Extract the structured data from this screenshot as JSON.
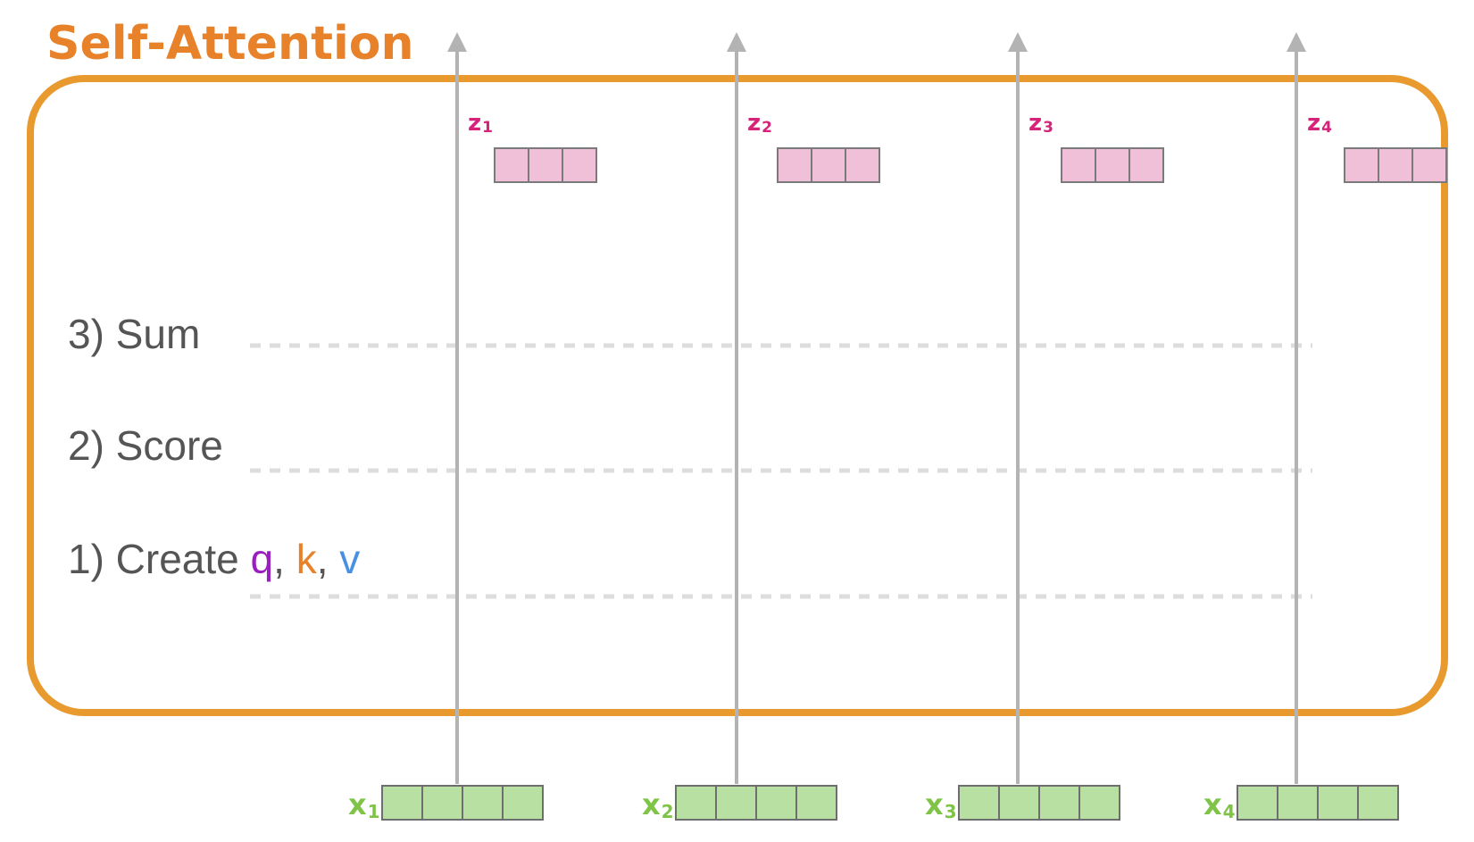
{
  "title": "Self-Attention",
  "steps": {
    "sum": "3) Sum",
    "score": "2) Score",
    "create_prefix": "1) Create ",
    "q": "q",
    "comma1": ", ",
    "k": "k",
    "comma2": ", ",
    "v": "v"
  },
  "inputs": [
    {
      "base": "x",
      "sub": "1"
    },
    {
      "base": "x",
      "sub": "2"
    },
    {
      "base": "x",
      "sub": "3"
    },
    {
      "base": "x",
      "sub": "4"
    }
  ],
  "outputs": [
    {
      "base": "z",
      "sub": "1"
    },
    {
      "base": "z",
      "sub": "2"
    },
    {
      "base": "z",
      "sub": "3"
    },
    {
      "base": "z",
      "sub": "4"
    }
  ],
  "input_vector_cells": 4,
  "output_vector_cells": 3,
  "colors": {
    "title": "#e8822a",
    "frame": "#e89a2e",
    "arrow": "#b3b3b3",
    "divider": "#dddddd",
    "input_fill": "#b7e0a2",
    "input_stroke": "#6e6e6e",
    "input_label": "#7fc447",
    "output_fill": "#f0c0d8",
    "output_stroke": "#7a7a7a",
    "output_label": "#d6237a",
    "q": "#9b1fc0",
    "k": "#e8822a",
    "v": "#4a90e2"
  }
}
